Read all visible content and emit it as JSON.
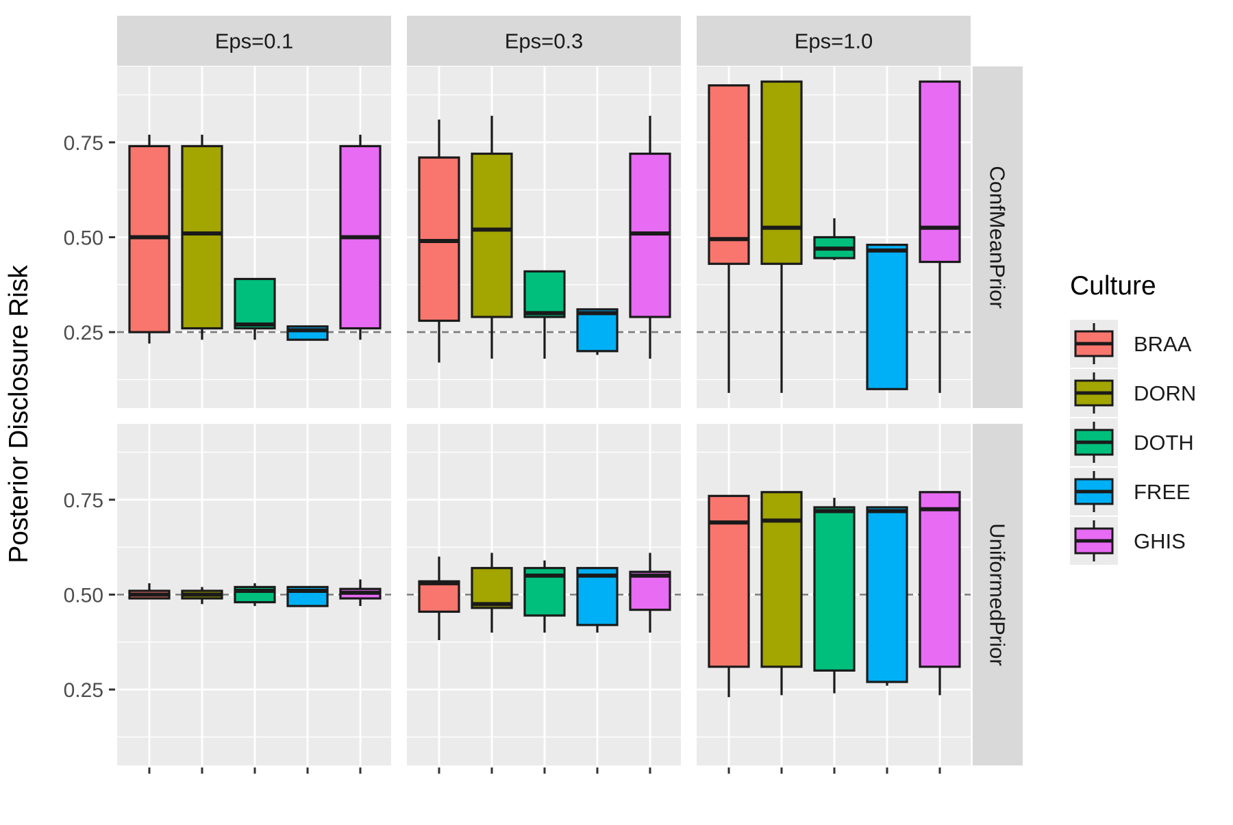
{
  "chart_data": {
    "type": "boxplot",
    "ylabel": "Posterior Disclosure Risk",
    "xlabel": "",
    "column_facets": [
      "Eps=0.1",
      "Eps=0.3",
      "Eps=1.0"
    ],
    "row_facets": [
      "ConfMeanPrior",
      "UniformedPrior"
    ],
    "ylim": [
      0.05,
      0.95
    ],
    "yticks": [
      0.25,
      0.5,
      0.75
    ],
    "ytick_labels": [
      "0.25",
      "0.50",
      "0.75"
    ],
    "grid": true,
    "reference_lines": {
      "ConfMeanPrior": 0.25,
      "UniformedPrior": 0.5
    },
    "legend": {
      "title": "Culture",
      "position": "right",
      "entries": [
        {
          "name": "BRAA",
          "color": "#F8766D"
        },
        {
          "name": "DORN",
          "color": "#A3A500"
        },
        {
          "name": "DOTH",
          "color": "#00BF7D"
        },
        {
          "name": "FREE",
          "color": "#00B0F6"
        },
        {
          "name": "GHIS",
          "color": "#E76BF3"
        }
      ]
    },
    "categories": [
      "BRAA",
      "DORN",
      "DOTH",
      "FREE",
      "GHIS"
    ],
    "panels": [
      {
        "row": "ConfMeanPrior",
        "col": "Eps=0.1",
        "boxes": [
          {
            "category": "BRAA",
            "whisker_low": 0.22,
            "q1": 0.25,
            "median": 0.5,
            "q3": 0.74,
            "whisker_high": 0.77
          },
          {
            "category": "DORN",
            "whisker_low": 0.23,
            "q1": 0.26,
            "median": 0.51,
            "q3": 0.74,
            "whisker_high": 0.77
          },
          {
            "category": "DOTH",
            "whisker_low": 0.23,
            "q1": 0.26,
            "median": 0.27,
            "q3": 0.39,
            "whisker_high": 0.39
          },
          {
            "category": "FREE",
            "whisker_low": 0.23,
            "q1": 0.23,
            "median": 0.255,
            "q3": 0.265,
            "whisker_high": 0.265
          },
          {
            "category": "GHIS",
            "whisker_low": 0.23,
            "q1": 0.26,
            "median": 0.5,
            "q3": 0.74,
            "whisker_high": 0.77
          }
        ]
      },
      {
        "row": "ConfMeanPrior",
        "col": "Eps=0.3",
        "boxes": [
          {
            "category": "BRAA",
            "whisker_low": 0.17,
            "q1": 0.28,
            "median": 0.49,
            "q3": 0.71,
            "whisker_high": 0.81
          },
          {
            "category": "DORN",
            "whisker_low": 0.18,
            "q1": 0.29,
            "median": 0.52,
            "q3": 0.72,
            "whisker_high": 0.82
          },
          {
            "category": "DOTH",
            "whisker_low": 0.18,
            "q1": 0.29,
            "median": 0.3,
            "q3": 0.41,
            "whisker_high": 0.41
          },
          {
            "category": "FREE",
            "whisker_low": 0.19,
            "q1": 0.2,
            "median": 0.3,
            "q3": 0.31,
            "whisker_high": 0.31
          },
          {
            "category": "GHIS",
            "whisker_low": 0.18,
            "q1": 0.29,
            "median": 0.51,
            "q3": 0.72,
            "whisker_high": 0.82
          }
        ]
      },
      {
        "row": "ConfMeanPrior",
        "col": "Eps=1.0",
        "boxes": [
          {
            "category": "BRAA",
            "whisker_low": 0.09,
            "q1": 0.43,
            "median": 0.495,
            "q3": 0.9,
            "whisker_high": 0.9
          },
          {
            "category": "DORN",
            "whisker_low": 0.09,
            "q1": 0.43,
            "median": 0.525,
            "q3": 0.91,
            "whisker_high": 0.91
          },
          {
            "category": "DOTH",
            "whisker_low": 0.44,
            "q1": 0.445,
            "median": 0.47,
            "q3": 0.5,
            "whisker_high": 0.55
          },
          {
            "category": "FREE",
            "whisker_low": 0.1,
            "q1": 0.1,
            "median": 0.465,
            "q3": 0.48,
            "whisker_high": 0.48
          },
          {
            "category": "GHIS",
            "whisker_low": 0.09,
            "q1": 0.435,
            "median": 0.525,
            "q3": 0.91,
            "whisker_high": 0.91
          }
        ]
      },
      {
        "row": "UniformedPrior",
        "col": "Eps=0.1",
        "boxes": [
          {
            "category": "BRAA",
            "whisker_low": 0.49,
            "q1": 0.49,
            "median": 0.5,
            "q3": 0.51,
            "whisker_high": 0.53
          },
          {
            "category": "DORN",
            "whisker_low": 0.475,
            "q1": 0.49,
            "median": 0.5,
            "q3": 0.51,
            "whisker_high": 0.52
          },
          {
            "category": "DOTH",
            "whisker_low": 0.47,
            "q1": 0.48,
            "median": 0.51,
            "q3": 0.52,
            "whisker_high": 0.53
          },
          {
            "category": "FREE",
            "whisker_low": 0.47,
            "q1": 0.47,
            "median": 0.51,
            "q3": 0.52,
            "whisker_high": 0.52
          },
          {
            "category": "GHIS",
            "whisker_low": 0.47,
            "q1": 0.49,
            "median": 0.505,
            "q3": 0.515,
            "whisker_high": 0.54
          }
        ]
      },
      {
        "row": "UniformedPrior",
        "col": "Eps=0.3",
        "boxes": [
          {
            "category": "BRAA",
            "whisker_low": 0.38,
            "q1": 0.455,
            "median": 0.53,
            "q3": 0.535,
            "whisker_high": 0.6
          },
          {
            "category": "DORN",
            "whisker_low": 0.4,
            "q1": 0.465,
            "median": 0.475,
            "q3": 0.57,
            "whisker_high": 0.61
          },
          {
            "category": "DOTH",
            "whisker_low": 0.4,
            "q1": 0.445,
            "median": 0.55,
            "q3": 0.57,
            "whisker_high": 0.59
          },
          {
            "category": "FREE",
            "whisker_low": 0.4,
            "q1": 0.42,
            "median": 0.55,
            "q3": 0.57,
            "whisker_high": 0.57
          },
          {
            "category": "GHIS",
            "whisker_low": 0.4,
            "q1": 0.46,
            "median": 0.55,
            "q3": 0.56,
            "whisker_high": 0.61
          }
        ]
      },
      {
        "row": "UniformedPrior",
        "col": "Eps=1.0",
        "boxes": [
          {
            "category": "BRAA",
            "whisker_low": 0.23,
            "q1": 0.31,
            "median": 0.69,
            "q3": 0.76,
            "whisker_high": 0.76
          },
          {
            "category": "DORN",
            "whisker_low": 0.235,
            "q1": 0.31,
            "median": 0.695,
            "q3": 0.77,
            "whisker_high": 0.77
          },
          {
            "category": "DOTH",
            "whisker_low": 0.24,
            "q1": 0.3,
            "median": 0.72,
            "q3": 0.73,
            "whisker_high": 0.755
          },
          {
            "category": "FREE",
            "whisker_low": 0.26,
            "q1": 0.27,
            "median": 0.72,
            "q3": 0.73,
            "whisker_high": 0.73
          },
          {
            "category": "GHIS",
            "whisker_low": 0.235,
            "q1": 0.31,
            "median": 0.725,
            "q3": 0.77,
            "whisker_high": 0.77
          }
        ]
      }
    ]
  }
}
